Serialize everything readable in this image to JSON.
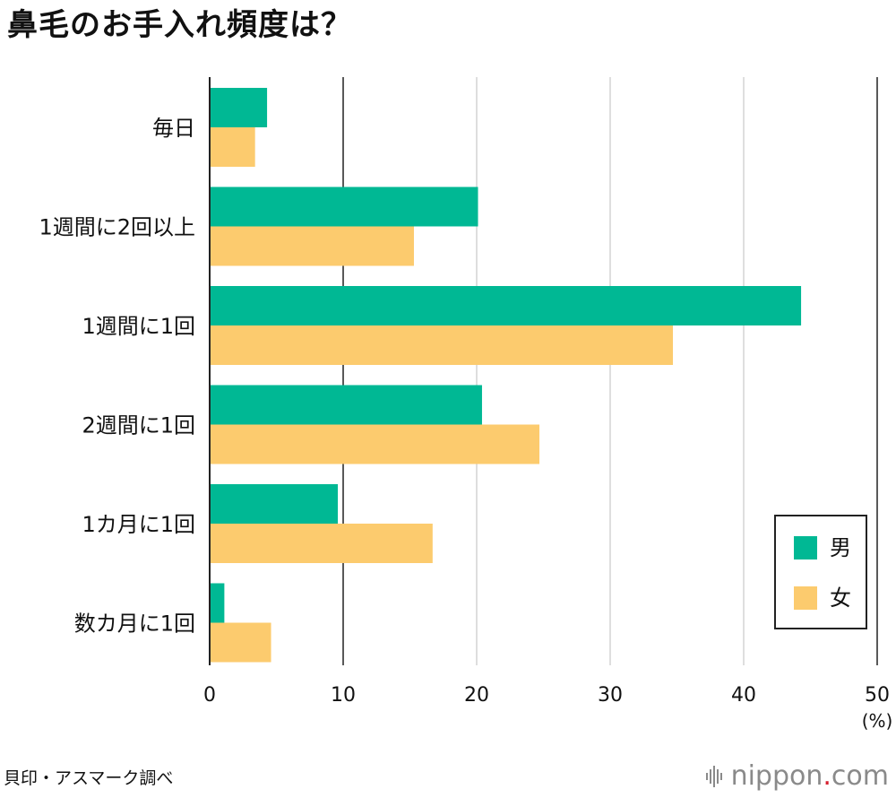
{
  "title": "鼻毛のお手入れ頻度は？",
  "source": "貝印・アスマーク調べ",
  "logo": {
    "text": "nippon",
    "dot": ".",
    "suffix": "com",
    "icon": "sound-bars-icon"
  },
  "colors": {
    "male": "#00b894",
    "female": "#fccb6e",
    "grid": "#c8c8c8",
    "axis": "#222222"
  },
  "chart_data": {
    "type": "bar",
    "orientation": "horizontal",
    "title": "鼻毛のお手入れ頻度は？",
    "categories": [
      "毎日",
      "1週間に2回以上",
      "1週間に1回",
      "2週間に1回",
      "1カ月に1回",
      "数カ月に1回"
    ],
    "series": [
      {
        "name": "男",
        "values": [
          4.3,
          20.1,
          44.3,
          20.4,
          9.6,
          1.1
        ]
      },
      {
        "name": "女",
        "values": [
          3.4,
          15.3,
          34.7,
          24.7,
          16.7,
          4.6
        ]
      }
    ],
    "xlim": [
      0,
      50
    ],
    "xticks": [
      "0",
      "10",
      "20",
      "30",
      "40",
      "50"
    ],
    "xunit": "(%)",
    "legend": "bottom-right"
  }
}
